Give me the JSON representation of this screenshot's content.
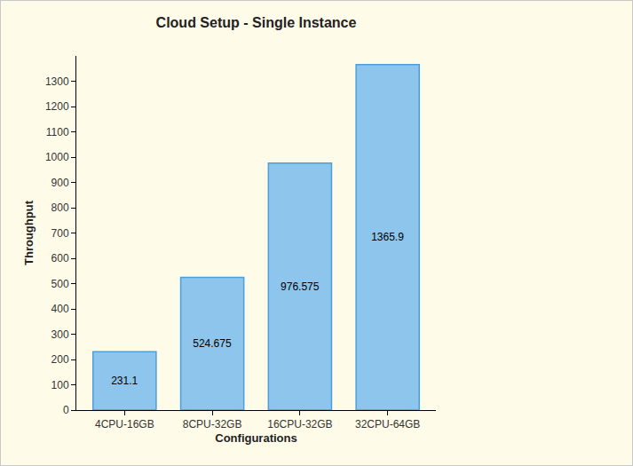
{
  "chart_data": {
    "type": "bar",
    "title": "Cloud Setup - Single Instance",
    "x_label": "Configurations",
    "y_label": "Throughput",
    "categories": [
      "4CPU-16GB",
      "8CPU-32GB",
      "16CPU-32GB",
      "32CPU-64GB"
    ],
    "values": [
      231.1,
      524.675,
      976.575,
      1365.9
    ],
    "color": "#8ec5ec",
    "ylim": [
      0,
      1400
    ],
    "yticks": [
      0,
      100,
      200,
      300,
      400,
      500,
      600,
      700,
      800,
      900,
      1000,
      1100,
      1200,
      1300
    ],
    "grid": false,
    "data_labels": true
  }
}
